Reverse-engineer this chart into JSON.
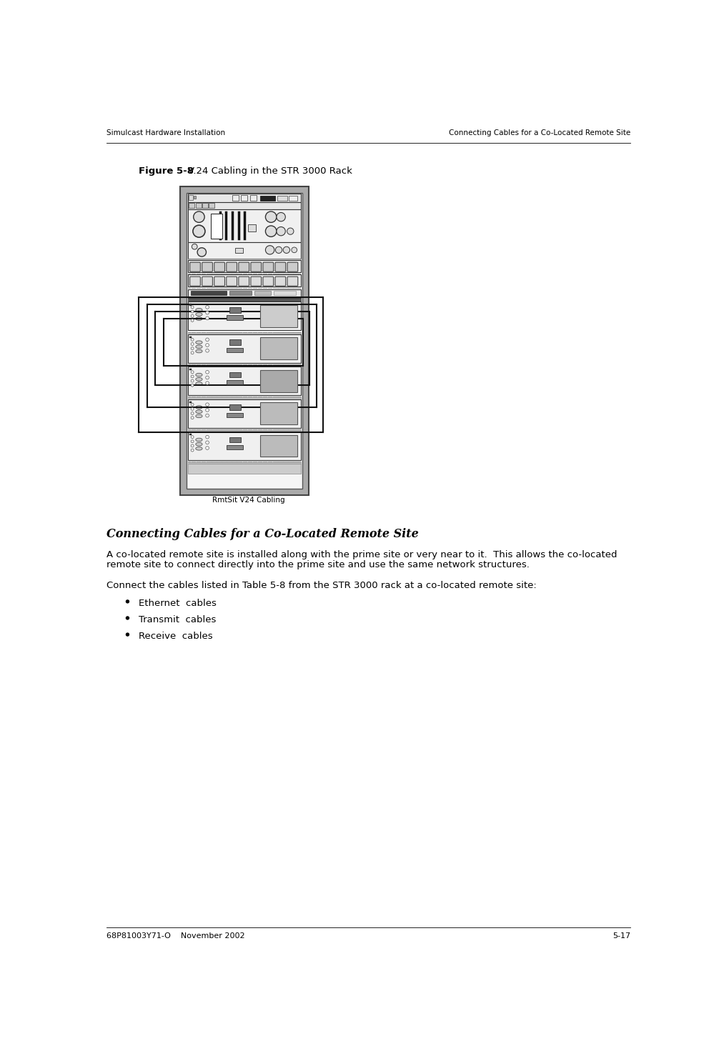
{
  "page_header_left": "Simulcast Hardware Installation",
  "page_header_right": "Connecting Cables for a Co-Located Remote Site",
  "figure_label": "Figure 5-8",
  "figure_title": "    V.24 Cabling in the STR 3000 Rack",
  "figure_caption": "RmtSit V24 Cabling",
  "section_title": "Connecting Cables for a Co-Located Remote Site",
  "paragraph1": "A co-located remote site is installed along with the prime site or very near to it.  This allows the co-located\nremote site to connect directly into the prime site and use the same network structures.",
  "paragraph2": "Connect the cables listed in Table 5-8 from the STR 3000 rack at a co-located remote site:",
  "bullets": [
    "Ethernet  cables",
    "Transmit  cables",
    "Receive  cables"
  ],
  "footer_left": "68P81003Y71-O    November 2002",
  "footer_right": "5-17",
  "bg_color": "#ffffff",
  "text_color": "#000000"
}
